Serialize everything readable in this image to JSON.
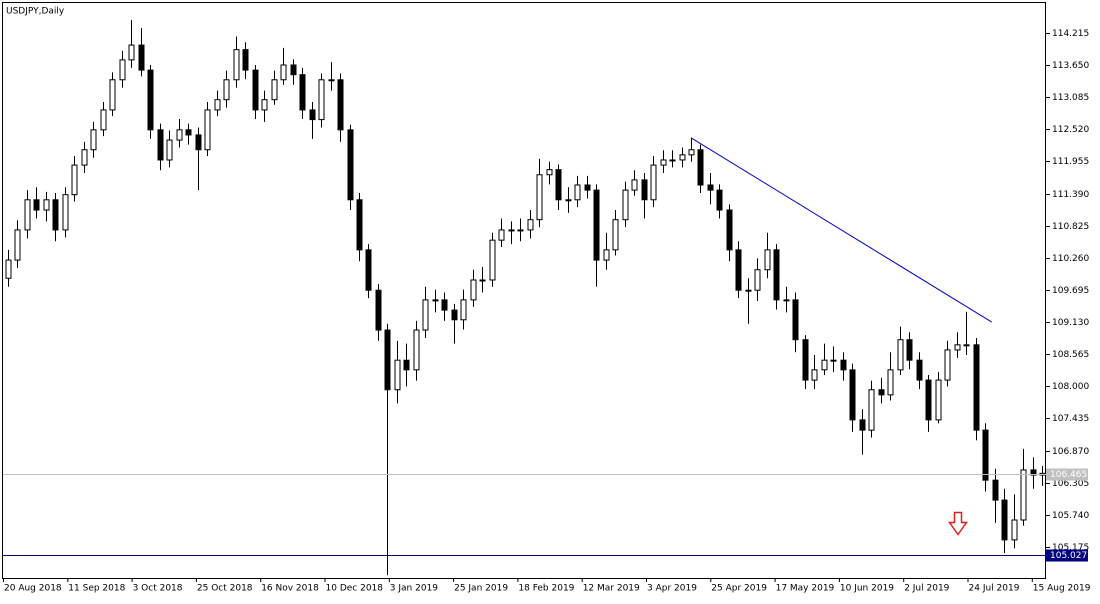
{
  "chart_data": {
    "type": "candlestick",
    "title": "USDJPY,Daily",
    "ohlc": [
      [
        109.9,
        110.4,
        109.75,
        110.22
      ],
      [
        110.22,
        110.92,
        110.08,
        110.75
      ],
      [
        110.75,
        111.45,
        110.6,
        111.28
      ],
      [
        111.28,
        111.5,
        110.95,
        111.1
      ],
      [
        111.1,
        111.42,
        110.9,
        111.28
      ],
      [
        111.28,
        111.4,
        110.55,
        110.75
      ],
      [
        110.75,
        111.5,
        110.62,
        111.37
      ],
      [
        111.37,
        112.05,
        111.25,
        111.89
      ],
      [
        111.89,
        112.3,
        111.75,
        112.16
      ],
      [
        112.16,
        112.65,
        112.02,
        112.51
      ],
      [
        112.51,
        113.0,
        112.4,
        112.86
      ],
      [
        112.86,
        113.52,
        112.75,
        113.39
      ],
      [
        113.39,
        113.9,
        113.25,
        113.74
      ],
      [
        113.74,
        114.44,
        113.6,
        114.0
      ],
      [
        114.0,
        114.3,
        113.45,
        113.56
      ],
      [
        113.56,
        113.65,
        112.35,
        112.51
      ],
      [
        112.51,
        112.62,
        111.8,
        111.98
      ],
      [
        111.98,
        112.5,
        111.85,
        112.33
      ],
      [
        112.33,
        112.7,
        112.2,
        112.51
      ],
      [
        112.51,
        112.62,
        112.25,
        112.42
      ],
      [
        112.42,
        112.55,
        111.45,
        112.16
      ],
      [
        112.16,
        113.0,
        112.05,
        112.86
      ],
      [
        112.86,
        113.2,
        112.75,
        113.04
      ],
      [
        113.04,
        113.55,
        112.9,
        113.39
      ],
      [
        113.39,
        114.15,
        113.25,
        113.92
      ],
      [
        113.92,
        114.05,
        113.4,
        113.56
      ],
      [
        113.56,
        113.65,
        112.7,
        112.86
      ],
      [
        112.86,
        113.2,
        112.65,
        113.04
      ],
      [
        113.04,
        113.55,
        112.95,
        113.39
      ],
      [
        113.39,
        113.95,
        113.3,
        113.65
      ],
      [
        113.65,
        113.75,
        113.3,
        113.48
      ],
      [
        113.48,
        113.6,
        112.7,
        112.86
      ],
      [
        112.86,
        113.0,
        112.35,
        112.69
      ],
      [
        112.69,
        113.5,
        112.55,
        113.39
      ],
      [
        113.39,
        113.7,
        113.2,
        113.39
      ],
      [
        113.39,
        113.5,
        112.3,
        112.51
      ],
      [
        112.51,
        112.6,
        111.1,
        111.28
      ],
      [
        111.28,
        111.4,
        110.2,
        110.4
      ],
      [
        110.4,
        110.5,
        109.55,
        109.69
      ],
      [
        109.69,
        109.8,
        108.8,
        108.99
      ],
      [
        108.99,
        109.1,
        104.68,
        107.94
      ],
      [
        107.94,
        108.8,
        107.7,
        108.46
      ],
      [
        108.46,
        108.75,
        108.0,
        108.29
      ],
      [
        108.29,
        109.15,
        108.1,
        108.99
      ],
      [
        108.99,
        109.75,
        108.85,
        109.52
      ],
      [
        109.52,
        109.7,
        109.3,
        109.52
      ],
      [
        109.52,
        109.65,
        109.15,
        109.34
      ],
      [
        109.34,
        109.45,
        108.75,
        109.17
      ],
      [
        109.17,
        109.7,
        109.0,
        109.52
      ],
      [
        109.52,
        110.05,
        109.4,
        109.87
      ],
      [
        109.87,
        110.1,
        109.65,
        109.87
      ],
      [
        109.87,
        110.7,
        109.75,
        110.57
      ],
      [
        110.57,
        110.95,
        110.45,
        110.75
      ],
      [
        110.75,
        110.9,
        110.5,
        110.75
      ],
      [
        110.75,
        110.95,
        110.55,
        110.75
      ],
      [
        110.75,
        111.1,
        110.6,
        110.93
      ],
      [
        110.93,
        112.0,
        110.8,
        111.72
      ],
      [
        111.72,
        111.95,
        111.55,
        111.81
      ],
      [
        111.81,
        111.9,
        111.1,
        111.28
      ],
      [
        111.28,
        111.5,
        111.05,
        111.28
      ],
      [
        111.28,
        111.7,
        111.15,
        111.54
      ],
      [
        111.54,
        111.7,
        111.3,
        111.45
      ],
      [
        111.45,
        111.55,
        109.75,
        110.22
      ],
      [
        110.22,
        110.7,
        110.05,
        110.4
      ],
      [
        110.4,
        111.1,
        110.3,
        110.93
      ],
      [
        110.93,
        111.6,
        110.8,
        111.45
      ],
      [
        111.45,
        111.8,
        111.35,
        111.63
      ],
      [
        111.63,
        111.75,
        110.95,
        111.28
      ],
      [
        111.28,
        112.05,
        111.15,
        111.89
      ],
      [
        111.89,
        112.15,
        111.75,
        111.98
      ],
      [
        111.98,
        112.15,
        111.85,
        111.98
      ],
      [
        111.98,
        112.2,
        111.85,
        112.07
      ],
      [
        112.07,
        112.37,
        111.95,
        112.16
      ],
      [
        112.16,
        112.25,
        111.4,
        111.54
      ],
      [
        111.54,
        111.75,
        111.2,
        111.45
      ],
      [
        111.45,
        111.55,
        110.95,
        111.1
      ],
      [
        111.1,
        111.2,
        110.2,
        110.4
      ],
      [
        110.4,
        110.55,
        109.55,
        109.69
      ],
      [
        109.69,
        109.9,
        109.1,
        109.69
      ],
      [
        109.69,
        110.25,
        109.5,
        110.05
      ],
      [
        110.05,
        110.7,
        109.9,
        110.4
      ],
      [
        110.4,
        110.5,
        109.35,
        109.52
      ],
      [
        109.52,
        109.75,
        109.3,
        109.52
      ],
      [
        109.52,
        109.65,
        108.6,
        108.82
      ],
      [
        108.82,
        108.9,
        107.95,
        108.11
      ],
      [
        108.11,
        108.55,
        107.95,
        108.29
      ],
      [
        108.29,
        108.75,
        108.2,
        108.46
      ],
      [
        108.46,
        108.7,
        108.25,
        108.46
      ],
      [
        108.46,
        108.6,
        108.1,
        108.29
      ],
      [
        108.29,
        108.4,
        107.2,
        107.41
      ],
      [
        107.41,
        107.6,
        106.8,
        107.23
      ],
      [
        107.23,
        108.1,
        107.1,
        107.94
      ],
      [
        107.94,
        108.15,
        107.7,
        107.85
      ],
      [
        107.85,
        108.6,
        107.75,
        108.29
      ],
      [
        108.29,
        109.05,
        108.2,
        108.82
      ],
      [
        108.82,
        108.95,
        108.3,
        108.46
      ],
      [
        108.46,
        108.6,
        107.95,
        108.11
      ],
      [
        108.11,
        108.2,
        107.2,
        107.41
      ],
      [
        107.41,
        108.25,
        107.35,
        108.11
      ],
      [
        108.11,
        108.8,
        108.0,
        108.64
      ],
      [
        108.64,
        108.95,
        108.5,
        108.73
      ],
      [
        108.73,
        109.31,
        108.55,
        108.73
      ],
      [
        108.73,
        108.85,
        107.05,
        107.23
      ],
      [
        107.23,
        107.35,
        106.15,
        106.35
      ],
      [
        106.35,
        106.55,
        105.6,
        106.0
      ],
      [
        106.0,
        106.2,
        105.07,
        105.3
      ],
      [
        105.3,
        106.1,
        105.15,
        105.65
      ],
      [
        105.65,
        106.9,
        105.55,
        106.53
      ],
      [
        106.53,
        106.75,
        106.2,
        106.44
      ],
      [
        106.44,
        106.6,
        106.25,
        106.47
      ]
    ],
    "ylim": [
      104.63,
      114.74
    ],
    "yticks": [
      114.215,
      {
        "value": 113.65,
        "label": "113.650"
      },
      113.085,
      {
        "value": 112.52,
        "label": "112.520"
      },
      111.955,
      {
        "value": 111.39,
        "label": "111.390"
      },
      110.825,
      {
        "value": 110.26,
        "label": "110.260"
      },
      109.695,
      {
        "value": 109.13,
        "label": "109.130"
      },
      108.565,
      {
        "value": 108.0,
        "label": "108.000"
      },
      107.435,
      {
        "value": 106.87,
        "label": "106.870"
      },
      106.305,
      {
        "value": 105.74,
        "label": "105.740"
      },
      105.175
    ],
    "xtick_labels": [
      "20 Aug 2018",
      "11 Sep 2018",
      "3 Oct 2018",
      "25 Oct 2018",
      "16 Nov 2018",
      "10 Dec 2018",
      "3 Jan 2019",
      "25 Jan 2019",
      "18 Feb 2019",
      "12 Mar 2019",
      "3 Apr 2019",
      "25 Apr 2019",
      "17 May 2019",
      "10 Jun 2019",
      "2 Jul 2019",
      "24 Jul 2019",
      "15 Aug 2019"
    ],
    "price_lines": [
      {
        "value": 106.465,
        "color": "#c0c0c0"
      },
      {
        "value": 105.027,
        "color": "#000080"
      }
    ],
    "trendline": {
      "from": [
        72,
        112.37
      ],
      "to": [
        103.7,
        109.13
      ],
      "color": "#0000c0"
    },
    "up_color": "#ffffff",
    "down_color": "#000000"
  }
}
